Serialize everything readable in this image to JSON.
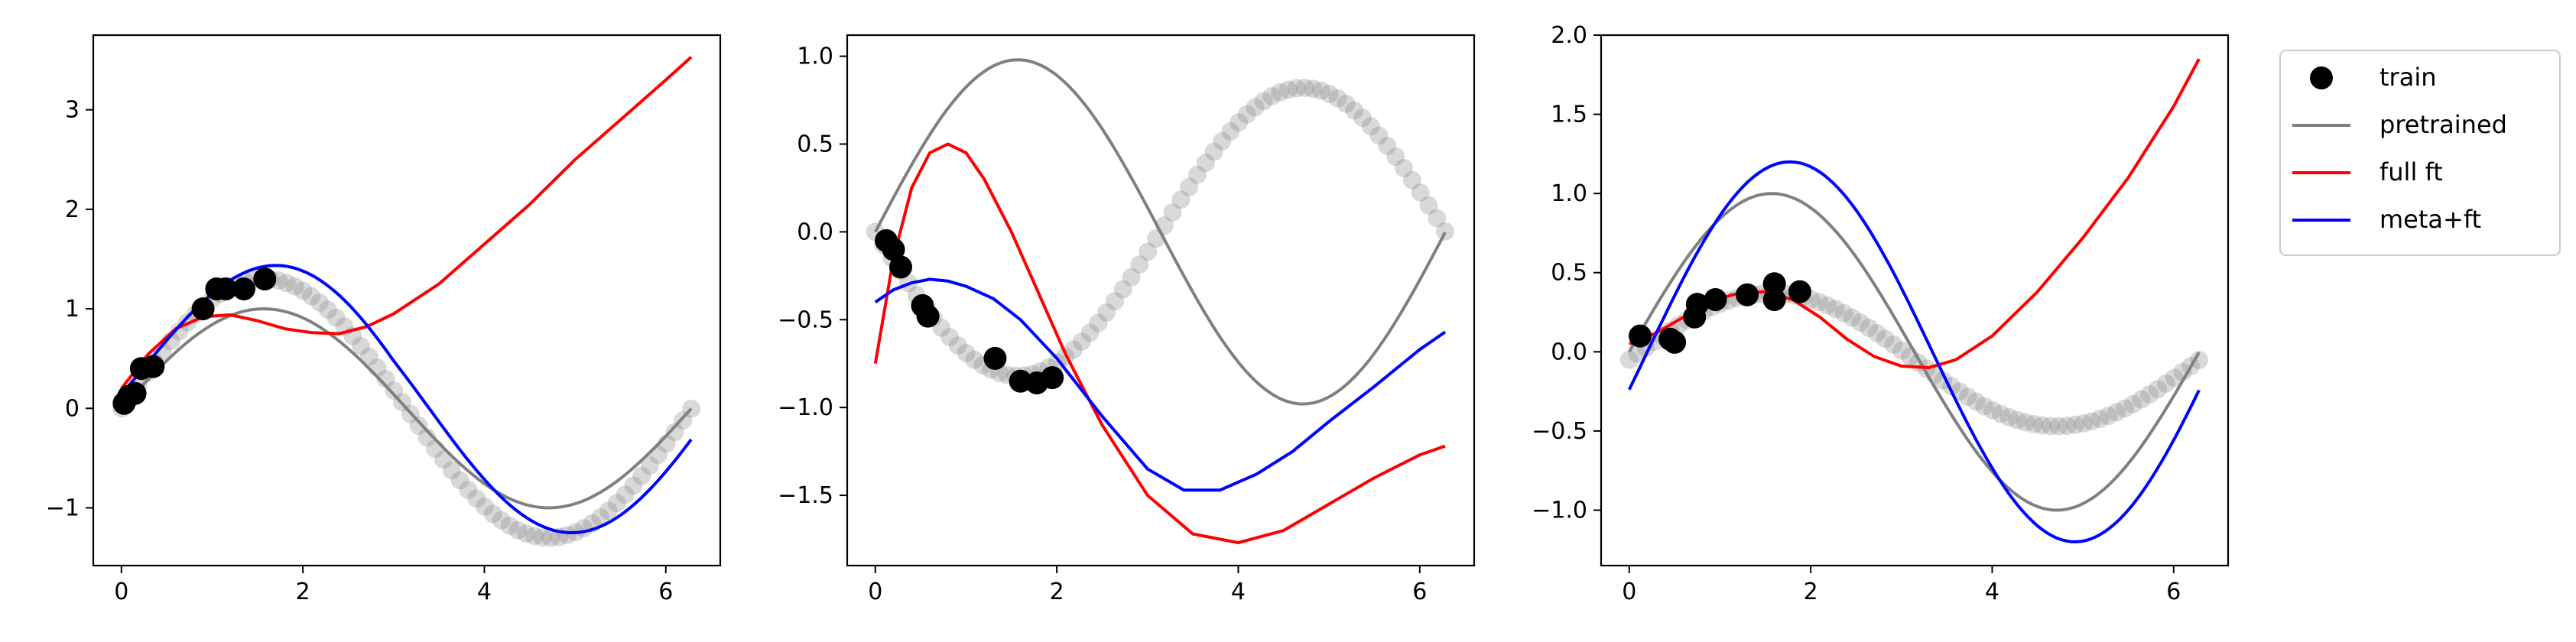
{
  "figure": {
    "legend": {
      "placement": "outside-right",
      "entries": [
        {
          "label": "train",
          "marker": "circle",
          "color": "#000000"
        },
        {
          "label": "pretrained",
          "marker": "line",
          "color": "#808080"
        },
        {
          "label": "full ft",
          "marker": "line",
          "color": "#ff0000"
        },
        {
          "label": "meta+ft",
          "marker": "line",
          "color": "#0000ff"
        }
      ]
    },
    "colors": {
      "train": "#000000",
      "pretrained": "#808080",
      "full_ft": "#ff0000",
      "meta_ft": "#0000ff",
      "test_points": "#808080"
    }
  },
  "chart_data": [
    {
      "type": "line",
      "xlim": [
        -0.31,
        6.6
      ],
      "ylim": [
        -1.58,
        3.75
      ],
      "xticks": [
        "0",
        "2",
        "4",
        "6"
      ],
      "xtick_values": [
        0,
        2,
        4,
        6
      ],
      "yticks": [
        "−1",
        "0",
        "1",
        "2",
        "3"
      ],
      "ytick_values": [
        -1,
        0,
        1,
        2,
        3
      ],
      "grid": false,
      "gray_sine": {
        "amplitude": 1.3,
        "phase": 0.0,
        "x_range": [
          0,
          6.28
        ],
        "count": 70
      },
      "train": {
        "x": [
          0.03,
          0.08,
          0.15,
          0.22,
          0.35,
          0.9,
          1.05,
          1.15,
          1.35,
          1.58
        ],
        "y": [
          0.05,
          0.12,
          0.15,
          0.4,
          0.42,
          1.0,
          1.2,
          1.2,
          1.2,
          1.3
        ]
      },
      "series": [
        {
          "name": "pretrained",
          "color": "#808080",
          "function": "sin",
          "amplitude": 1.0,
          "phase": 0.0,
          "offset": 0.0
        },
        {
          "name": "full ft",
          "color": "#ff0000",
          "x": [
            0,
            0.3,
            0.6,
            0.9,
            1.2,
            1.5,
            1.8,
            2.1,
            2.4,
            2.7,
            3.0,
            3.5,
            4.0,
            4.5,
            5.0,
            5.5,
            6.0,
            6.28
          ],
          "y": [
            0.2,
            0.55,
            0.8,
            0.92,
            0.94,
            0.88,
            0.8,
            0.76,
            0.75,
            0.82,
            0.95,
            1.25,
            1.65,
            2.05,
            2.5,
            2.9,
            3.3,
            3.53
          ]
        },
        {
          "name": "meta+ft",
          "color": "#0000ff",
          "function": "sin",
          "amplitude": 1.25,
          "phase": -0.25,
          "offset": 0.45,
          "offset_decay": true
        }
      ]
    },
    {
      "type": "line",
      "xlim": [
        -0.31,
        6.6
      ],
      "ylim": [
        -1.9,
        1.12
      ],
      "xticks": [
        "0",
        "2",
        "4",
        "6"
      ],
      "xtick_values": [
        0,
        2,
        4,
        6
      ],
      "yticks": [
        "−1.5",
        "−1.0",
        "−0.5",
        "0.0",
        "0.5",
        "1.0"
      ],
      "ytick_values": [
        -1.5,
        -1.0,
        -0.5,
        0.0,
        0.5,
        1.0
      ],
      "grid": false,
      "gray_sine": {
        "amplitude": 0.82,
        "phase": 3.14159,
        "x_range": [
          0,
          6.28
        ],
        "count": 70
      },
      "train": {
        "x": [
          0.12,
          0.2,
          0.28,
          0.52,
          0.58,
          1.32,
          1.6,
          1.78,
          1.95
        ],
        "y": [
          -0.05,
          -0.1,
          -0.2,
          -0.42,
          -0.48,
          -0.72,
          -0.85,
          -0.86,
          -0.83
        ]
      },
      "series": [
        {
          "name": "pretrained",
          "color": "#808080",
          "function": "sin",
          "amplitude": 0.98,
          "phase": 0.0,
          "offset": 0.0
        },
        {
          "name": "full ft",
          "color": "#ff0000",
          "x": [
            0,
            0.2,
            0.4,
            0.6,
            0.8,
            1.0,
            1.2,
            1.5,
            1.8,
            2.1,
            2.5,
            3.0,
            3.5,
            4.0,
            4.5,
            5.0,
            5.5,
            6.0,
            6.28
          ],
          "y": [
            -0.75,
            -0.15,
            0.25,
            0.45,
            0.5,
            0.45,
            0.3,
            0.0,
            -0.35,
            -0.7,
            -1.1,
            -1.5,
            -1.72,
            -1.77,
            -1.7,
            -1.55,
            -1.4,
            -1.27,
            -1.22
          ]
        },
        {
          "name": "meta+ft",
          "color": "#0000ff",
          "x": [
            0,
            0.2,
            0.4,
            0.6,
            0.8,
            1.0,
            1.3,
            1.6,
            2.0,
            2.5,
            3.0,
            3.4,
            3.8,
            4.2,
            4.6,
            5.0,
            5.5,
            6.0,
            6.28
          ],
          "y": [
            -0.4,
            -0.33,
            -0.29,
            -0.27,
            -0.28,
            -0.31,
            -0.38,
            -0.5,
            -0.72,
            -1.05,
            -1.35,
            -1.47,
            -1.47,
            -1.38,
            -1.25,
            -1.08,
            -0.88,
            -0.67,
            -0.57
          ]
        }
      ]
    },
    {
      "type": "line",
      "xlim": [
        -0.31,
        6.6
      ],
      "ylim": [
        -1.35,
        2.0
      ],
      "xticks": [
        "0",
        "2",
        "4",
        "6"
      ],
      "xtick_values": [
        0,
        2,
        4,
        6
      ],
      "yticks": [
        "−1.0",
        "−0.5",
        "0.0",
        "0.5",
        "1.0",
        "1.5",
        "2.0"
      ],
      "ytick_values": [
        -1.0,
        -0.5,
        0.0,
        0.5,
        1.0,
        1.5,
        2.0
      ],
      "grid": false,
      "gray_sine": {
        "amplitude": 0.42,
        "phase": 0.0,
        "offset": -0.05,
        "x_range": [
          0,
          6.28
        ],
        "count": 70
      },
      "train": {
        "x": [
          0.12,
          0.45,
          0.5,
          0.72,
          0.75,
          0.95,
          1.3,
          1.6,
          1.6,
          1.88
        ],
        "y": [
          0.1,
          0.08,
          0.06,
          0.22,
          0.3,
          0.33,
          0.36,
          0.43,
          0.33,
          0.38
        ]
      },
      "series": [
        {
          "name": "pretrained",
          "color": "#808080",
          "function": "sin",
          "amplitude": 1.0,
          "phase": 0.0,
          "offset": 0.0
        },
        {
          "name": "full ft",
          "color": "#ff0000",
          "x": [
            0,
            0.3,
            0.6,
            0.9,
            1.2,
            1.5,
            1.8,
            2.1,
            2.4,
            2.7,
            3.0,
            3.3,
            3.6,
            4.0,
            4.5,
            5.0,
            5.5,
            6.0,
            6.28
          ],
          "y": [
            0.05,
            0.12,
            0.22,
            0.32,
            0.37,
            0.38,
            0.33,
            0.22,
            0.08,
            -0.03,
            -0.09,
            -0.1,
            -0.05,
            0.1,
            0.38,
            0.72,
            1.1,
            1.55,
            1.85
          ]
        },
        {
          "name": "meta+ft",
          "color": "#0000ff",
          "function": "sin",
          "amplitude": 1.2,
          "phase": -0.2,
          "offset": 0.0
        }
      ]
    }
  ]
}
